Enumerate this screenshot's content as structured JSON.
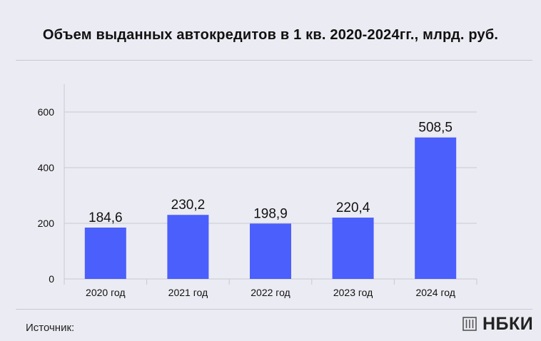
{
  "header": {
    "title": "Объем выданных автокредитов в 1 кв. 2020-2024гг., млрд. руб."
  },
  "footer": {
    "source_label": "Источник:",
    "brand_name": "НБКИ",
    "brand_icon": "building-logo-icon"
  },
  "colors": {
    "bar": "#4a5ffb",
    "grid": "#c9c9d2",
    "text": "#111111",
    "background": "#ebebf3"
  },
  "chart_data": {
    "type": "bar",
    "title": "Объем выданных автокредитов в 1 кв. 2020-2024гг., млрд. руб.",
    "categories": [
      "2020 год",
      "2021 год",
      "2022 год",
      "2023 год",
      "2024 год"
    ],
    "values": [
      184.6,
      230.2,
      198.9,
      220.4,
      508.5
    ],
    "value_labels": [
      "184,6",
      "230,2",
      "198,9",
      "220,4",
      "508,5"
    ],
    "ylim": [
      0,
      700
    ],
    "yticks": [
      0,
      200,
      400,
      600
    ],
    "ytick_labels": [
      "0",
      "200",
      "400",
      "600"
    ],
    "xlabel": "",
    "ylabel": "",
    "grid": true,
    "legend": "none"
  }
}
